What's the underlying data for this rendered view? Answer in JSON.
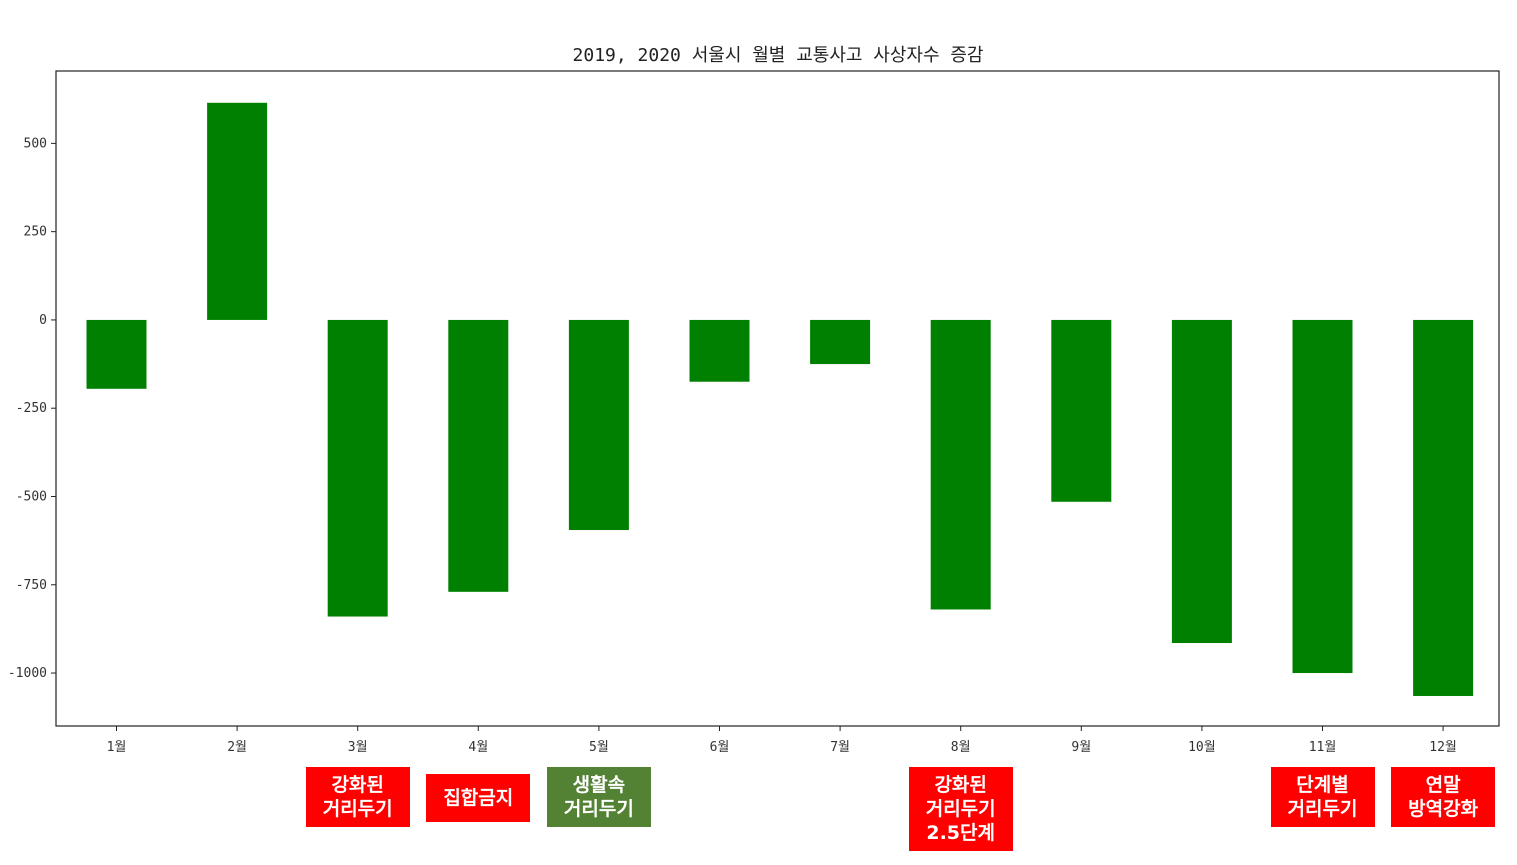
{
  "chart_data": {
    "type": "bar",
    "title": "2019, 2020 서울시 월별 교통사고 사상자수 증감",
    "xlabel": "",
    "ylabel": "",
    "categories": [
      "1월",
      "2월",
      "3월",
      "4월",
      "5월",
      "6월",
      "7월",
      "8월",
      "9월",
      "10월",
      "11월",
      "12월"
    ],
    "values": [
      -195,
      615,
      -840,
      -770,
      -595,
      -175,
      -125,
      -820,
      -515,
      -915,
      -1000,
      -1065
    ],
    "ylim": [
      -1150,
      705
    ],
    "yticks": [
      500,
      250,
      0,
      -250,
      -500,
      -750,
      -1000
    ],
    "bar_color": "#008000",
    "grid": false,
    "legend": "none"
  },
  "annotations": [
    {
      "month": "3월",
      "text": "강화된\n거리두기",
      "color": "#ff0000"
    },
    {
      "month": "4월",
      "text": "집합금지",
      "color": "#ff0000"
    },
    {
      "month": "5월",
      "text": "생활속\n거리두기",
      "color": "#548235"
    },
    {
      "month": "8월",
      "text": "강화된\n거리두기\n2.5단계",
      "color": "#ff0000"
    },
    {
      "month": "11월",
      "text": "단계별\n거리두기",
      "color": "#ff0000"
    },
    {
      "month": "12월",
      "text": "연말\n방역강화",
      "color": "#ff0000"
    }
  ]
}
